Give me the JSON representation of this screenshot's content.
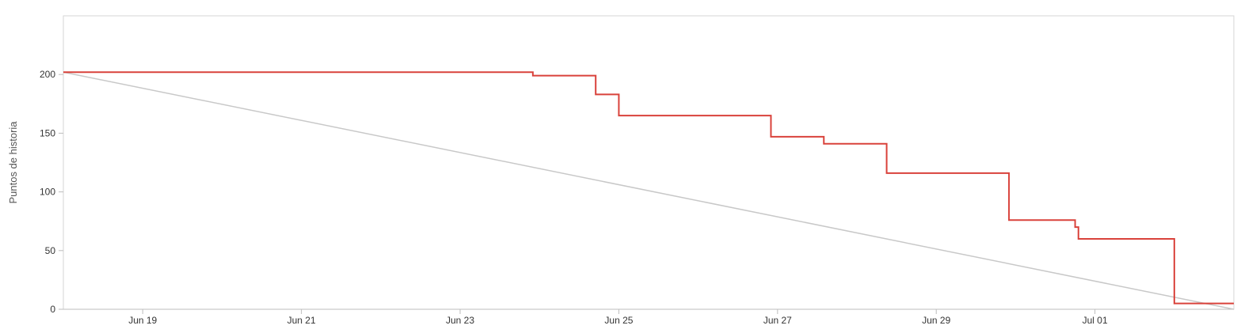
{
  "chart_data": {
    "type": "line",
    "title": "",
    "xlabel": "",
    "ylabel": "Puntos de historia",
    "xlim": [
      "2024-06-18",
      "2024-07-02T18:00"
    ],
    "ylim": [
      0,
      250
    ],
    "x_ticks": [
      {
        "date": "2024-06-19",
        "label": "Jun 19"
      },
      {
        "date": "2024-06-21",
        "label": "Jun 21"
      },
      {
        "date": "2024-06-23",
        "label": "Jun 23"
      },
      {
        "date": "2024-06-25",
        "label": "Jun 25"
      },
      {
        "date": "2024-06-27",
        "label": "Jun 27"
      },
      {
        "date": "2024-06-29",
        "label": "Jun 29"
      },
      {
        "date": "2024-07-01",
        "label": "Jul 01"
      }
    ],
    "y_ticks": [
      0,
      50,
      100,
      150,
      200
    ],
    "grid": false,
    "legend": "none",
    "series": [
      {
        "color": "#c8c8c8",
        "step": false,
        "points": [
          {
            "x": "2024-06-18T00:00",
            "y": 202
          },
          {
            "x": "2024-07-02T18:00",
            "y": 0
          }
        ]
      },
      {
        "color": "#d9423b",
        "step": true,
        "points": [
          {
            "x": "2024-06-18T00:00",
            "y": 202
          },
          {
            "x": "2024-06-23T22:00",
            "y": 199
          },
          {
            "x": "2024-06-24T17:00",
            "y": 183
          },
          {
            "x": "2024-06-25T00:00",
            "y": 165
          },
          {
            "x": "2024-06-26T22:00",
            "y": 147
          },
          {
            "x": "2024-06-27T14:00",
            "y": 141
          },
          {
            "x": "2024-06-28T09:00",
            "y": 116
          },
          {
            "x": "2024-06-29T22:00",
            "y": 76
          },
          {
            "x": "2024-06-30T18:00",
            "y": 70
          },
          {
            "x": "2024-06-30T19:00",
            "y": 60
          },
          {
            "x": "2024-07-02T00:00",
            "y": 5
          },
          {
            "x": "2024-07-02T18:00",
            "y": 5
          }
        ]
      }
    ]
  }
}
